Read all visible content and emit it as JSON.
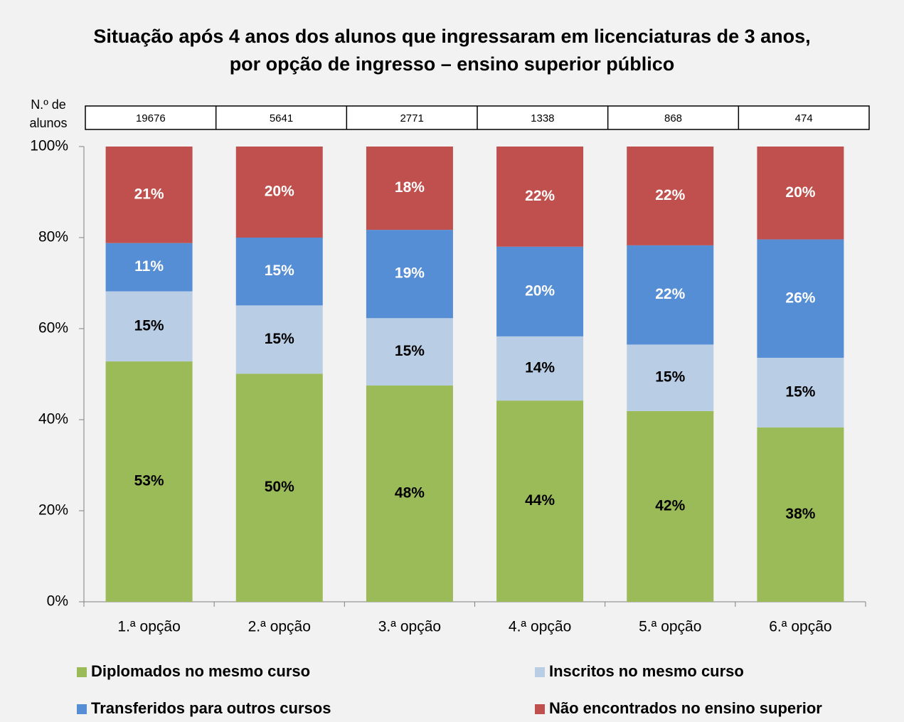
{
  "chart_data": {
    "type": "stacked_bar",
    "title": "Situação após 4 anos dos alunos que ingressaram em licenciaturas de 3 anos,\npor opção de ingresso – ensino superior público",
    "n_label": "N.º de alunos",
    "n_values": [
      19676,
      5641,
      2771,
      1338,
      868,
      474
    ],
    "categories": [
      "1.ª opção",
      "2.ª opção",
      "3.ª opção",
      "4.ª opção",
      "5.ª opção",
      "6.ª opção"
    ],
    "series": [
      {
        "name": "Diplomados no mesmo curso",
        "color": "#9bbb59",
        "values": [
          52.8,
          50.1,
          47.5,
          44.2,
          41.9,
          38.3
        ],
        "value_labels": [
          "53%",
          "50%",
          "48%",
          "44%",
          "42%",
          "38%"
        ]
      },
      {
        "name": "Inscritos no mesmo curso",
        "color": "#b9cde5",
        "values": [
          15.4,
          15.0,
          14.8,
          14.1,
          14.6,
          15.3
        ],
        "value_labels": [
          "15%",
          "15%",
          "15%",
          "14%",
          "15%",
          "15%"
        ]
      },
      {
        "name": "Transferidos para outros cursos",
        "color": "#558ed5",
        "values": [
          10.6,
          14.9,
          19.4,
          19.7,
          21.8,
          26.0
        ],
        "value_labels": [
          "11%",
          "15%",
          "19%",
          "20%",
          "22%",
          "26%"
        ]
      },
      {
        "name": "Não encontrados no ensino superior",
        "color": "#c0504d",
        "values": [
          21.2,
          20.0,
          18.3,
          22.0,
          21.7,
          20.4
        ],
        "value_labels": [
          "21%",
          "20%",
          "18%",
          "22%",
          "22%",
          "20%"
        ]
      }
    ],
    "ylim": [
      0,
      100
    ],
    "yticks": [
      {
        "value": 0,
        "label": "0%"
      },
      {
        "value": 20,
        "label": "20%"
      },
      {
        "value": 40,
        "label": "40%"
      },
      {
        "value": 60,
        "label": "60%"
      },
      {
        "value": 80,
        "label": "80%"
      },
      {
        "value": 100,
        "label": "100%"
      }
    ]
  }
}
